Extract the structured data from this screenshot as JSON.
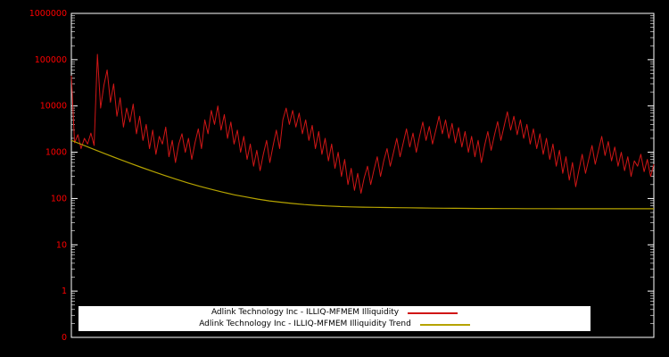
{
  "chart_data": {
    "type": "line",
    "title": "",
    "xlabel": "",
    "ylabel": "",
    "y_axis": {
      "scale": "log",
      "tick_labels": [
        "1000000",
        "100000",
        "10000",
        "1000",
        "100",
        "10",
        "1",
        "0"
      ],
      "tick_values": [
        1000000,
        100000,
        10000,
        1000,
        100,
        10,
        1,
        0.1
      ],
      "ylim_log10": [
        -1,
        6
      ]
    },
    "colors": {
      "background": "#000000",
      "border": "#ffffff",
      "axis_text": "#ff0000",
      "legend_background": "#ffffff",
      "legend_text": "#000000"
    },
    "legend": [
      {
        "label": "Adlink Technology Inc - ILLIQ-MFMEM Illiquidity",
        "color": "#d01616"
      },
      {
        "label": "Adlink Technology Inc - ILLIQ-MFMEM Illiquidity Trend",
        "color": "#b5a300"
      }
    ],
    "series": [
      {
        "name": "Adlink Technology Inc - ILLIQ-MFMEM Illiquidity",
        "color": "#d01616",
        "values": [
          45000,
          1600,
          2400,
          1200,
          2000,
          1500,
          2600,
          1400,
          130000,
          9000,
          28000,
          60000,
          12000,
          30000,
          6000,
          15000,
          3500,
          9000,
          4500,
          11000,
          2500,
          6000,
          1800,
          4000,
          1200,
          3000,
          900,
          2200,
          1500,
          3500,
          800,
          1800,
          600,
          1500,
          2500,
          1000,
          2000,
          700,
          1600,
          3200,
          1200,
          5000,
          2500,
          8000,
          4000,
          10000,
          3000,
          6500,
          2000,
          4500,
          1500,
          3000,
          1000,
          2200,
          700,
          1500,
          500,
          1100,
          400,
          900,
          1800,
          600,
          1400,
          3000,
          1200,
          5000,
          9000,
          4000,
          8000,
          3500,
          7000,
          2500,
          5000,
          1800,
          3800,
          1200,
          2800,
          900,
          2000,
          650,
          1500,
          450,
          1000,
          300,
          700,
          200,
          450,
          150,
          350,
          130,
          280,
          500,
          200,
          420,
          800,
          300,
          650,
          1200,
          500,
          1000,
          2000,
          800,
          1600,
          3200,
          1300,
          2600,
          1000,
          2200,
          4500,
          1800,
          3600,
          1500,
          3000,
          6000,
          2500,
          5000,
          2000,
          4200,
          1600,
          3400,
          1300,
          2800,
          1000,
          2200,
          800,
          1800,
          600,
          1400,
          2800,
          1100,
          2300,
          4600,
          1800,
          3700,
          7500,
          3000,
          6000,
          2400,
          5000,
          2000,
          4000,
          1500,
          3200,
          1200,
          2500,
          900,
          2000,
          700,
          1500,
          500,
          1100,
          350,
          800,
          250,
          600,
          180,
          420,
          900,
          350,
          700,
          1400,
          550,
          1100,
          2200,
          850,
          1700,
          650,
          1300,
          500,
          1000,
          400,
          800,
          300,
          650,
          500,
          900,
          380,
          700,
          300,
          550
        ]
      },
      {
        "name": "Adlink Technology Inc - ILLIQ-MFMEM Illiquidity Trend",
        "color": "#b5a300",
        "values": [
          1800,
          1429,
          1137,
          907,
          726,
          584,
          472,
          384,
          315,
          261,
          218,
          184,
          158,
          137,
          120,
          108,
          97,
          89,
          83,
          78,
          74,
          71,
          69,
          67,
          66,
          65,
          64.5,
          64,
          63.5,
          63,
          62.5,
          62,
          61.8,
          61.5,
          61.2,
          61,
          60.8,
          60.6,
          60.5,
          60.4,
          60.3,
          60.25,
          60.2,
          60.15,
          60.1,
          60.1,
          60.05,
          60.05,
          60,
          60,
          60
        ]
      }
    ]
  }
}
